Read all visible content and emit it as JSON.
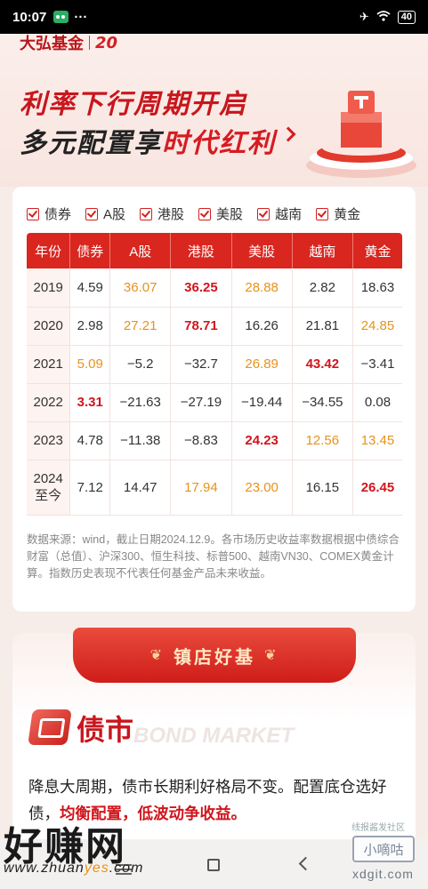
{
  "status_bar": {
    "time": "10:07",
    "dots": "···",
    "battery": "40"
  },
  "header": {
    "brand": "大弘基金",
    "anniversary": "20",
    "headline1": "利率下行周期开启",
    "headline2_a": "多元配置享",
    "headline2_b": "时代红利"
  },
  "filters": [
    "债券",
    "A股",
    "港股",
    "美股",
    "越南",
    "黄金"
  ],
  "table": {
    "headers": [
      "年份",
      "债券",
      "A股",
      "港股",
      "美股",
      "越南",
      "黄金"
    ],
    "rows": [
      {
        "year": "2019",
        "cells": [
          {
            "v": "4.59",
            "c": "nrm"
          },
          {
            "v": "36.07",
            "c": "org"
          },
          {
            "v": "36.25",
            "c": "red"
          },
          {
            "v": "28.88",
            "c": "org"
          },
          {
            "v": "2.82",
            "c": "nrm"
          },
          {
            "v": "18.63",
            "c": "nrm"
          }
        ]
      },
      {
        "year": "2020",
        "cells": [
          {
            "v": "2.98",
            "c": "nrm"
          },
          {
            "v": "27.21",
            "c": "org"
          },
          {
            "v": "78.71",
            "c": "red"
          },
          {
            "v": "16.26",
            "c": "nrm"
          },
          {
            "v": "21.81",
            "c": "nrm"
          },
          {
            "v": "24.85",
            "c": "org"
          }
        ]
      },
      {
        "year": "2021",
        "cells": [
          {
            "v": "5.09",
            "c": "org"
          },
          {
            "v": "−5.2",
            "c": "nrm"
          },
          {
            "v": "−32.7",
            "c": "nrm"
          },
          {
            "v": "26.89",
            "c": "org"
          },
          {
            "v": "43.42",
            "c": "red"
          },
          {
            "v": "−3.41",
            "c": "nrm"
          }
        ]
      },
      {
        "year": "2022",
        "cells": [
          {
            "v": "3.31",
            "c": "red"
          },
          {
            "v": "−21.63",
            "c": "nrm"
          },
          {
            "v": "−27.19",
            "c": "nrm"
          },
          {
            "v": "−19.44",
            "c": "nrm"
          },
          {
            "v": "−34.55",
            "c": "nrm"
          },
          {
            "v": "0.08",
            "c": "nrm"
          }
        ]
      },
      {
        "year": "2023",
        "cells": [
          {
            "v": "4.78",
            "c": "nrm"
          },
          {
            "v": "−11.38",
            "c": "nrm"
          },
          {
            "v": "−8.83",
            "c": "nrm"
          },
          {
            "v": "24.23",
            "c": "red"
          },
          {
            "v": "12.56",
            "c": "org"
          },
          {
            "v": "13.45",
            "c": "org"
          }
        ]
      },
      {
        "year": "2024",
        "year2": "至今",
        "cells": [
          {
            "v": "7.12",
            "c": "nrm"
          },
          {
            "v": "14.47",
            "c": "nrm"
          },
          {
            "v": "17.94",
            "c": "org"
          },
          {
            "v": "23.00",
            "c": "org"
          },
          {
            "v": "16.15",
            "c": "nrm"
          },
          {
            "v": "26.45",
            "c": "red"
          }
        ]
      }
    ]
  },
  "footnote": "数据来源：wind，截止日期2024.12.9。各市场历史收益率数据根据中债综合财富（总值）、沪深300、恒生科技、标普500、越南VN30、COMEX黄金计算。指数历史表现不代表任何基金产品未来收益。",
  "section": {
    "ribbon": "镇店好基",
    "title": "债市",
    "title_en": "BOND MARKET",
    "text_a": "降息大周期，债市长期利好格局不变。配置底仓选好债，",
    "text_em": "均衡配置，低波动争收益。"
  },
  "watermarks": {
    "left_big": "好赚网",
    "left_url_a": "www.zhuan",
    "left_url_b": "yes",
    "left_url_c": ".com",
    "right_small": "线报酱发社区",
    "right_box": "小嘀咕",
    "right_url": "xdgit.com"
  },
  "colors": {
    "accent": "#d9261f",
    "orange": "#e8921b",
    "red": "#d0161c"
  }
}
